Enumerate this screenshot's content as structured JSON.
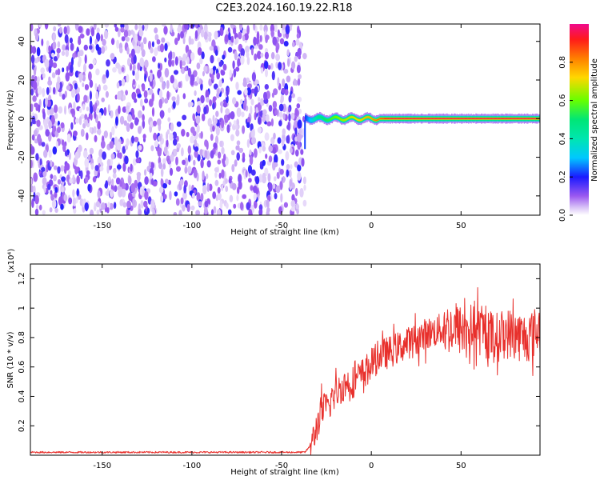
{
  "figure_title": "C2E3.2024.160.19.22.R18",
  "colors": {
    "snr_line": "#e8302c",
    "axis": "#000000",
    "colormap": [
      "#ffffff",
      "#e6d0f7",
      "#b57af0",
      "#7a1ee8",
      "#1a1aff",
      "#00c8ff",
      "#00e676",
      "#66ff00",
      "#ffd700",
      "#ff7f00",
      "#ff1a1a",
      "#f00a8c"
    ]
  },
  "chart_data": [
    {
      "type": "heatmap",
      "xlabel": "Height of straight line (km)",
      "ylabel": "Frequency (Hz)",
      "xlim": [
        -190,
        94
      ],
      "ylim": [
        -50,
        49
      ],
      "xticks": [
        -150,
        -100,
        -50,
        0,
        50
      ],
      "yticks": [
        -40,
        -20,
        0,
        20,
        40
      ],
      "colorbar": {
        "label": "Normalized spectral amplitude",
        "range": [
          0,
          1
        ],
        "ticks": [
          "0.0",
          "0.2",
          "0.4",
          "0.6",
          "0.8"
        ]
      },
      "description_values": {
        "noise_region_x": [
          -190,
          -37
        ],
        "signal_onset_x": -37,
        "signal_frequency_hz": 0,
        "ridge_amplitude_at_x": [
          {
            "x": -36,
            "amp": 0.25
          },
          {
            "x": -30,
            "amp": 0.45
          },
          {
            "x": -20,
            "amp": 0.6
          },
          {
            "x": -10,
            "amp": 0.7
          },
          {
            "x": 0,
            "amp": 0.8
          },
          {
            "x": 10,
            "amp": 0.95
          },
          {
            "x": 94,
            "amp": 0.95
          }
        ]
      }
    },
    {
      "type": "line",
      "xlabel": "Height of straight line (km)",
      "ylabel": "SNR (10 * v/v)",
      "yscale_label": "(x10⁴)",
      "xlim": [
        -190,
        94
      ],
      "ylim": [
        0,
        1.3
      ],
      "xticks": [
        -150,
        -100,
        -50,
        0,
        50
      ],
      "yticks": [
        0.2,
        0.4,
        0.6,
        0.8,
        1.0,
        1.2
      ],
      "series": [
        {
          "x": [
            -190,
            -150,
            -100,
            -50,
            -37,
            -33,
            -28,
            -25,
            -20,
            -15,
            -10,
            -5,
            0,
            5,
            10,
            20,
            30,
            40,
            45,
            50,
            55,
            60,
            65,
            70,
            75,
            80,
            85,
            90,
            93
          ],
          "y": [
            0.02,
            0.02,
            0.02,
            0.02,
            0.02,
            0.08,
            0.3,
            0.32,
            0.42,
            0.48,
            0.5,
            0.55,
            0.62,
            0.68,
            0.7,
            0.76,
            0.82,
            0.86,
            0.86,
            0.85,
            0.86,
            0.85,
            0.82,
            0.8,
            0.83,
            0.82,
            0.8,
            0.82,
            0.85
          ]
        }
      ]
    }
  ]
}
